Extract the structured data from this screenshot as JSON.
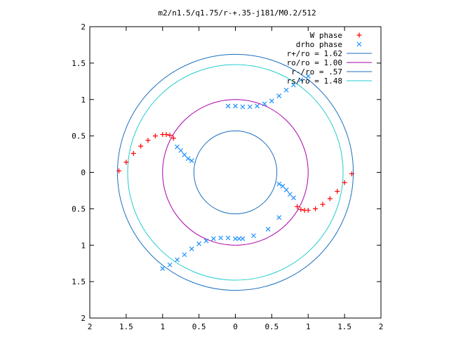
{
  "chart_data": {
    "type": "scatter",
    "title": "m2/n1.5/q1.75/r-+.35-j181/M0.2/512",
    "xlim": [
      -2,
      2
    ],
    "ylim": [
      -2,
      2
    ],
    "x_tick_labels": [
      "2",
      "1.5",
      "1",
      "0.5",
      "0",
      "0.5",
      "1",
      "1.5",
      "2"
    ],
    "y_tick_labels": [
      "2",
      "1.5",
      "1",
      "0.5",
      "0",
      "0.5",
      "1",
      "1.5",
      "2"
    ],
    "x_tick_values": [
      -2,
      -1.5,
      -1,
      -0.5,
      0,
      0.5,
      1,
      1.5,
      2
    ],
    "y_tick_values": [
      2,
      1.5,
      1,
      0.5,
      0,
      -0.5,
      -1,
      -1.5,
      -2
    ],
    "grid": false,
    "legend_position": "top-right",
    "series": [
      {
        "name": "W phase",
        "marker": "plus",
        "color": "#ff0000",
        "x": [
          -1.6,
          -1.5,
          -1.4,
          -1.3,
          -1.2,
          -1.1,
          -1.0,
          -0.95,
          -0.9,
          -0.85,
          1.6,
          1.5,
          1.4,
          1.3,
          1.2,
          1.1,
          1.0,
          0.95,
          0.9,
          0.85
        ],
        "y": [
          0.02,
          0.14,
          0.26,
          0.36,
          0.44,
          0.5,
          0.52,
          0.52,
          0.51,
          0.47,
          -0.02,
          -0.14,
          -0.26,
          -0.36,
          -0.44,
          -0.5,
          -0.52,
          -0.52,
          -0.51,
          -0.47
        ]
      },
      {
        "name": "drho phase",
        "marker": "cross",
        "color": "#1e90ff",
        "x": [
          -0.8,
          -0.75,
          -0.7,
          -0.65,
          -0.6,
          0.6,
          0.65,
          0.7,
          0.75,
          0.8,
          -1.0,
          -0.9,
          -0.8,
          -0.7,
          -0.6,
          -0.5,
          -0.4,
          -0.3,
          -0.2,
          -0.1,
          0.0,
          0.1,
          1.0,
          0.9,
          0.8,
          0.7,
          0.6,
          0.5,
          0.4,
          0.3,
          0.2,
          0.1,
          0.0,
          -0.1,
          0.05,
          0.25,
          0.45,
          0.6
        ],
        "y": [
          0.35,
          0.3,
          0.24,
          0.19,
          0.16,
          -0.16,
          -0.19,
          -0.24,
          -0.3,
          -0.35,
          -1.32,
          -1.27,
          -1.2,
          -1.13,
          -1.05,
          -0.98,
          -0.94,
          -0.91,
          -0.9,
          -0.9,
          -0.91,
          -0.91,
          1.32,
          1.27,
          1.2,
          1.13,
          1.05,
          0.98,
          0.94,
          0.91,
          0.9,
          0.9,
          0.91,
          0.91,
          -0.91,
          -0.87,
          -0.78,
          -0.62
        ]
      },
      {
        "name": "r+/ro = 1.62",
        "marker": "line",
        "color": "#1c6fbf",
        "radius": 1.62
      },
      {
        "name": "ro/ro = 1.00",
        "marker": "line",
        "color": "#aa00aa",
        "radius": 1.0
      },
      {
        "name": "r-/ro = .57",
        "marker": "line",
        "color": "#1c6fbf",
        "radius": 0.57
      },
      {
        "name": "rs/ro = 1.48",
        "marker": "line",
        "color": "#22cccc",
        "radius": 1.48
      }
    ]
  }
}
